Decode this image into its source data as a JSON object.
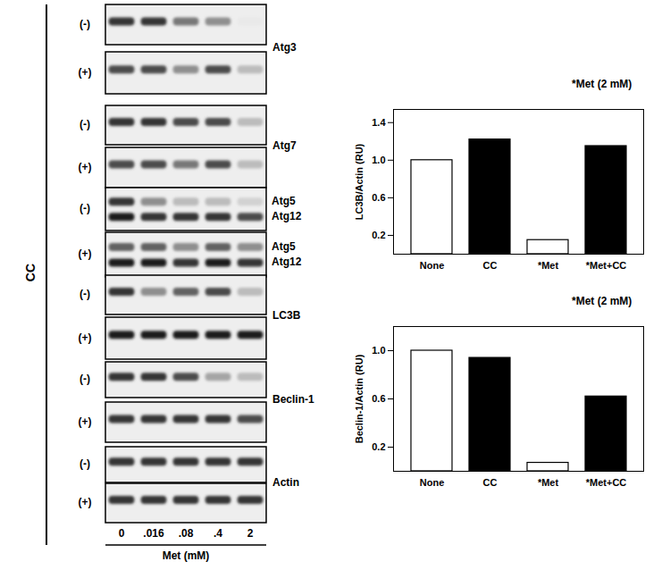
{
  "chart_data": [
    {
      "type": "blot",
      "side_label": "CC",
      "x_label": "Met (mM)",
      "lanes": [
        "0",
        ".016",
        ".08",
        ".4",
        "2"
      ],
      "panels": [
        {
          "label": "Atg3",
          "rows": [
            {
              "condition": "(-)",
              "bands": [
                [
                  0.9,
                  0.9,
                  0.6,
                  0.5,
                  0.1
                ]
              ]
            },
            {
              "condition": "(+)",
              "bands": [
                [
                  0.8,
                  0.8,
                  0.5,
                  0.8,
                  0.3
                ]
              ]
            }
          ]
        },
        {
          "label": "Atg7",
          "rows": [
            {
              "condition": "(-)",
              "bands": [
                [
                  0.9,
                  0.9,
                  0.8,
                  0.8,
                  0.3
                ]
              ]
            },
            {
              "condition": "(+)",
              "bands": [
                [
                  0.8,
                  0.8,
                  0.6,
                  0.8,
                  0.3
                ]
              ]
            }
          ]
        },
        {
          "band_labels": [
            "Atg5",
            "Atg12"
          ],
          "rows": [
            {
              "condition": "(-)",
              "bands": [
                [
                  0.9,
                  0.5,
                  0.3,
                  0.3,
                  0.2
                ],
                [
                  1.0,
                  0.9,
                  0.9,
                  0.9,
                  0.8
                ]
              ]
            },
            {
              "condition": "(+)",
              "bands": [
                [
                  0.7,
                  0.7,
                  0.5,
                  0.7,
                  0.5
                ],
                [
                  1.0,
                  1.0,
                  0.9,
                  1.0,
                  0.9
                ]
              ]
            }
          ]
        },
        {
          "label": "LC3B",
          "rows": [
            {
              "condition": "(-)",
              "bands": [
                [
                  0.9,
                  0.5,
                  0.7,
                  0.8,
                  0.3
                ]
              ]
            },
            {
              "condition": "(+)",
              "bands": [
                [
                  1.0,
                  1.0,
                  1.0,
                  1.0,
                  1.0
                ]
              ]
            }
          ]
        },
        {
          "label": "Beclin-1",
          "rows": [
            {
              "condition": "(-)",
              "bands": [
                [
                  0.9,
                  0.9,
                  0.8,
                  0.4,
                  0.3
                ]
              ]
            },
            {
              "condition": "(+)",
              "bands": [
                [
                  0.9,
                  0.9,
                  0.9,
                  0.9,
                  0.8
                ]
              ]
            }
          ]
        },
        {
          "label": "Actin",
          "rows": [
            {
              "condition": "(-)",
              "bands": [
                [
                  0.9,
                  0.9,
                  0.9,
                  0.9,
                  0.9
                ]
              ]
            },
            {
              "condition": "(+)",
              "bands": [
                [
                  0.9,
                  0.9,
                  0.9,
                  0.9,
                  0.9
                ]
              ]
            }
          ]
        }
      ]
    },
    {
      "type": "bar",
      "title": "*Met (2 mM)",
      "y_label": "LC3B/Actin (RU)",
      "categories": [
        "None",
        "CC",
        "*Met",
        "*Met+CC"
      ],
      "values": [
        1.0,
        1.22,
        0.15,
        1.15
      ],
      "colors": [
        "#ffffff",
        "#000000",
        "#ffffff",
        "#000000"
      ],
      "ylim": [
        0,
        1.54
      ],
      "yticks": [
        0.2,
        0.6,
        {
          "value": 1,
          "label": "1.0"
        },
        1.4
      ]
    },
    {
      "type": "bar",
      "title": "*Met (2 mM)",
      "y_label": "Beclin-1/Actin (RU)",
      "categories": [
        "None",
        "CC",
        "*Met",
        "*Met+CC"
      ],
      "values": [
        1.0,
        0.94,
        0.07,
        0.62
      ],
      "colors": [
        "#ffffff",
        "#000000",
        "#ffffff",
        "#000000"
      ],
      "ylim": [
        0,
        1.2
      ],
      "yticks": [
        0.2,
        0.6,
        {
          "value": 1,
          "label": "1.0"
        }
      ]
    }
  ]
}
